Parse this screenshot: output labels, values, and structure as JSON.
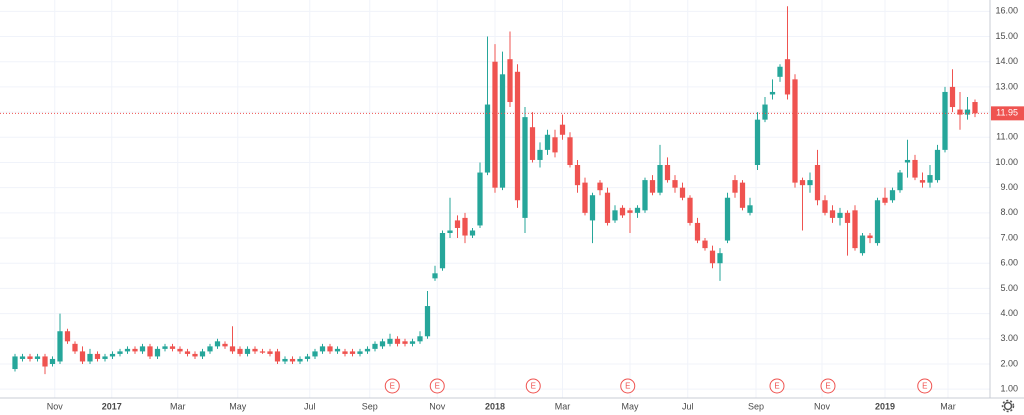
{
  "chart_data": {
    "type": "candlestick",
    "up_color": "#26a69a",
    "down_color": "#ef5350",
    "ohlc": [
      [
        1.8,
        2.4,
        1.7,
        2.3
      ],
      [
        2.2,
        2.4,
        2.1,
        2.3
      ],
      [
        2.3,
        2.4,
        2.1,
        2.2
      ],
      [
        2.2,
        2.4,
        2.1,
        2.3
      ],
      [
        2.3,
        2.4,
        1.6,
        1.9
      ],
      [
        2.0,
        2.3,
        1.9,
        2.2
      ],
      [
        2.1,
        4.0,
        2.0,
        3.3
      ],
      [
        3.3,
        3.4,
        2.8,
        2.9
      ],
      [
        2.8,
        2.9,
        2.4,
        2.5
      ],
      [
        2.5,
        2.7,
        2.0,
        2.1
      ],
      [
        2.1,
        2.6,
        2.0,
        2.4
      ],
      [
        2.4,
        2.5,
        2.1,
        2.2
      ],
      [
        2.2,
        2.4,
        2.1,
        2.3
      ],
      [
        2.3,
        2.5,
        2.2,
        2.4
      ],
      [
        2.4,
        2.6,
        2.3,
        2.5
      ],
      [
        2.5,
        2.7,
        2.4,
        2.6
      ],
      [
        2.6,
        2.7,
        2.4,
        2.5
      ],
      [
        2.5,
        2.8,
        2.4,
        2.7
      ],
      [
        2.7,
        2.8,
        2.2,
        2.3
      ],
      [
        2.3,
        2.7,
        2.2,
        2.6
      ],
      [
        2.6,
        2.8,
        2.5,
        2.7
      ],
      [
        2.7,
        2.8,
        2.5,
        2.6
      ],
      [
        2.6,
        2.7,
        2.4,
        2.5
      ],
      [
        2.5,
        2.6,
        2.3,
        2.4
      ],
      [
        2.4,
        2.5,
        2.2,
        2.3
      ],
      [
        2.3,
        2.6,
        2.2,
        2.5
      ],
      [
        2.5,
        2.8,
        2.4,
        2.7
      ],
      [
        2.7,
        3.0,
        2.6,
        2.9
      ],
      [
        2.8,
        2.9,
        2.6,
        2.7
      ],
      [
        2.7,
        3.5,
        2.4,
        2.5
      ],
      [
        2.6,
        2.7,
        2.3,
        2.4
      ],
      [
        2.4,
        2.7,
        2.3,
        2.6
      ],
      [
        2.6,
        2.7,
        2.4,
        2.5
      ],
      [
        2.5,
        2.6,
        2.4,
        2.45
      ],
      [
        2.5,
        2.6,
        2.3,
        2.4
      ],
      [
        2.5,
        2.6,
        2.0,
        2.1
      ],
      [
        2.1,
        2.3,
        2.0,
        2.2
      ],
      [
        2.2,
        2.3,
        2.0,
        2.1
      ],
      [
        2.1,
        2.3,
        2.0,
        2.2
      ],
      [
        2.2,
        2.4,
        2.1,
        2.3
      ],
      [
        2.3,
        2.6,
        2.2,
        2.5
      ],
      [
        2.5,
        2.8,
        2.4,
        2.7
      ],
      [
        2.7,
        2.8,
        2.4,
        2.5
      ],
      [
        2.5,
        2.7,
        2.4,
        2.6
      ],
      [
        2.5,
        2.6,
        2.3,
        2.4
      ],
      [
        2.5,
        2.6,
        2.3,
        2.4
      ],
      [
        2.4,
        2.6,
        2.3,
        2.5
      ],
      [
        2.5,
        2.7,
        2.4,
        2.6
      ],
      [
        2.6,
        2.9,
        2.5,
        2.8
      ],
      [
        2.7,
        3.0,
        2.6,
        2.9
      ],
      [
        2.8,
        3.2,
        2.7,
        3.0
      ],
      [
        3.0,
        3.1,
        2.7,
        2.8
      ],
      [
        2.9,
        3.0,
        2.7,
        2.8
      ],
      [
        2.8,
        3.0,
        2.7,
        2.9
      ],
      [
        2.9,
        3.3,
        2.8,
        3.1
      ],
      [
        3.1,
        4.9,
        3.0,
        4.3
      ],
      [
        5.4,
        5.9,
        5.3,
        5.6
      ],
      [
        5.8,
        7.3,
        5.7,
        7.2
      ],
      [
        7.2,
        8.6,
        7.0,
        7.3
      ],
      [
        7.7,
        7.9,
        7.0,
        7.4
      ],
      [
        7.8,
        8.0,
        6.8,
        7.1
      ],
      [
        7.1,
        7.4,
        7.0,
        7.3
      ],
      [
        7.5,
        10.0,
        7.4,
        9.6
      ],
      [
        9.6,
        15.0,
        9.5,
        12.3
      ],
      [
        14.0,
        14.7,
        8.8,
        9.0
      ],
      [
        9.0,
        14.4,
        8.9,
        13.5
      ],
      [
        14.1,
        15.2,
        12.2,
        12.4
      ],
      [
        13.6,
        13.9,
        8.2,
        8.5
      ],
      [
        7.8,
        12.2,
        7.2,
        11.8
      ],
      [
        11.4,
        12.0,
        10.0,
        10.1
      ],
      [
        10.1,
        10.8,
        9.8,
        10.5
      ],
      [
        10.5,
        11.3,
        10.3,
        11.1
      ],
      [
        11.0,
        11.3,
        10.2,
        10.4
      ],
      [
        11.5,
        11.9,
        10.9,
        11.1
      ],
      [
        11.0,
        11.2,
        9.8,
        9.9
      ],
      [
        9.9,
        10.1,
        8.8,
        9.1
      ],
      [
        9.2,
        9.4,
        7.9,
        8.0
      ],
      [
        7.7,
        8.8,
        6.8,
        8.7
      ],
      [
        9.2,
        9.3,
        8.7,
        8.9
      ],
      [
        8.8,
        9.0,
        7.5,
        7.6
      ],
      [
        7.7,
        8.3,
        7.6,
        8.1
      ],
      [
        8.2,
        8.3,
        7.8,
        7.9
      ],
      [
        8.1,
        8.2,
        7.2,
        8.0
      ],
      [
        8.0,
        8.3,
        7.8,
        8.2
      ],
      [
        8.1,
        9.4,
        8.0,
        9.3
      ],
      [
        9.3,
        9.5,
        8.7,
        8.8
      ],
      [
        8.8,
        10.7,
        8.7,
        9.9
      ],
      [
        9.9,
        10.2,
        9.2,
        9.3
      ],
      [
        9.3,
        9.5,
        8.8,
        9.0
      ],
      [
        9.0,
        9.2,
        8.5,
        8.6
      ],
      [
        8.6,
        8.7,
        7.5,
        7.6
      ],
      [
        7.6,
        7.8,
        6.8,
        6.9
      ],
      [
        6.9,
        7.0,
        6.5,
        6.6
      ],
      [
        6.5,
        6.7,
        5.8,
        6.0
      ],
      [
        6.0,
        6.6,
        5.3,
        6.4
      ],
      [
        6.9,
        8.8,
        6.8,
        8.6
      ],
      [
        9.3,
        9.5,
        8.6,
        8.8
      ],
      [
        9.2,
        9.3,
        8.1,
        8.2
      ],
      [
        8.0,
        8.6,
        7.9,
        8.3
      ],
      [
        9.9,
        12.0,
        9.7,
        11.7
      ],
      [
        11.7,
        12.6,
        11.6,
        12.3
      ],
      [
        12.7,
        13.3,
        12.5,
        12.8
      ],
      [
        13.4,
        13.9,
        13.2,
        13.8
      ],
      [
        14.1,
        16.2,
        12.5,
        12.7
      ],
      [
        13.3,
        13.5,
        9.0,
        9.2
      ],
      [
        9.3,
        9.4,
        7.3,
        9.1
      ],
      [
        9.1,
        9.6,
        8.8,
        9.3
      ],
      [
        9.9,
        10.5,
        8.3,
        8.5
      ],
      [
        8.5,
        8.7,
        7.9,
        8.0
      ],
      [
        8.1,
        8.3,
        7.6,
        7.8
      ],
      [
        7.8,
        8.2,
        7.5,
        8.0
      ],
      [
        8.0,
        8.1,
        6.3,
        7.6
      ],
      [
        8.1,
        8.3,
        6.5,
        6.6
      ],
      [
        6.4,
        7.2,
        6.3,
        7.1
      ],
      [
        7.1,
        7.2,
        6.8,
        7.0
      ],
      [
        6.8,
        8.6,
        6.7,
        8.5
      ],
      [
        8.6,
        9.0,
        8.3,
        8.4
      ],
      [
        8.5,
        9.0,
        8.4,
        8.9
      ],
      [
        8.9,
        9.7,
        8.8,
        9.6
      ],
      [
        10.0,
        10.9,
        9.4,
        10.1
      ],
      [
        10.1,
        10.3,
        9.3,
        9.4
      ],
      [
        9.3,
        9.6,
        9.0,
        9.2
      ],
      [
        9.2,
        9.9,
        9.0,
        9.5
      ],
      [
        9.3,
        10.7,
        9.2,
        10.5
      ],
      [
        10.5,
        13.0,
        10.4,
        12.8
      ],
      [
        13.0,
        13.7,
        12.0,
        12.2
      ],
      [
        12.1,
        12.8,
        11.3,
        11.9
      ],
      [
        11.9,
        12.6,
        11.7,
        12.1
      ],
      [
        12.4,
        12.5,
        11.8,
        11.95
      ]
    ],
    "ylim": [
      0.65,
      16.45
    ],
    "yticks": [
      {
        "value": 1,
        "label": "1.00"
      },
      {
        "value": 2,
        "label": "2.00"
      },
      {
        "value": 3,
        "label": "3.00"
      },
      {
        "value": 4,
        "label": "4.00"
      },
      {
        "value": 5,
        "label": "5.00"
      },
      {
        "value": 6,
        "label": "6.00"
      },
      {
        "value": 7,
        "label": "7.00"
      },
      {
        "value": 8,
        "label": "8.00"
      },
      {
        "value": 9,
        "label": "9.00"
      },
      {
        "value": 10,
        "label": "10.00"
      },
      {
        "value": 11,
        "label": "11.00"
      },
      {
        "value": 12,
        "label": "12.00"
      },
      {
        "value": 13,
        "label": "13.00"
      },
      {
        "value": 14,
        "label": "14.00"
      },
      {
        "value": 15,
        "label": "15.00"
      },
      {
        "value": 16,
        "label": "16.00"
      }
    ],
    "xticks": [
      {
        "value": 5.3,
        "label": "Nov"
      },
      {
        "value": 12.9,
        "label": "2017"
      },
      {
        "value": 21.7,
        "label": "Mar"
      },
      {
        "value": 29.7,
        "label": "May"
      },
      {
        "value": 39.3,
        "label": "Jul"
      },
      {
        "value": 47.3,
        "label": "Sep"
      },
      {
        "value": 56.3,
        "label": "Nov"
      },
      {
        "value": 64,
        "label": "2018"
      },
      {
        "value": 73,
        "label": "Mar"
      },
      {
        "value": 82,
        "label": "May"
      },
      {
        "value": 89.7,
        "label": "Jul"
      },
      {
        "value": 98.8,
        "label": "Sep"
      },
      {
        "value": 107.6,
        "label": "Nov"
      },
      {
        "value": 116,
        "label": "2019"
      },
      {
        "value": 124.4,
        "label": "Mar"
      }
    ],
    "earnings": [
      {
        "x": 50.3,
        "label": "E"
      },
      {
        "x": 56.3,
        "label": "E"
      },
      {
        "x": 69.1,
        "label": "E"
      },
      {
        "x": 81.7,
        "label": "E"
      },
      {
        "x": 101.6,
        "label": "E"
      },
      {
        "x": 108.4,
        "label": "E"
      },
      {
        "x": 121.3,
        "label": "E"
      }
    ],
    "last_price": 11.95,
    "grid": true
  }
}
